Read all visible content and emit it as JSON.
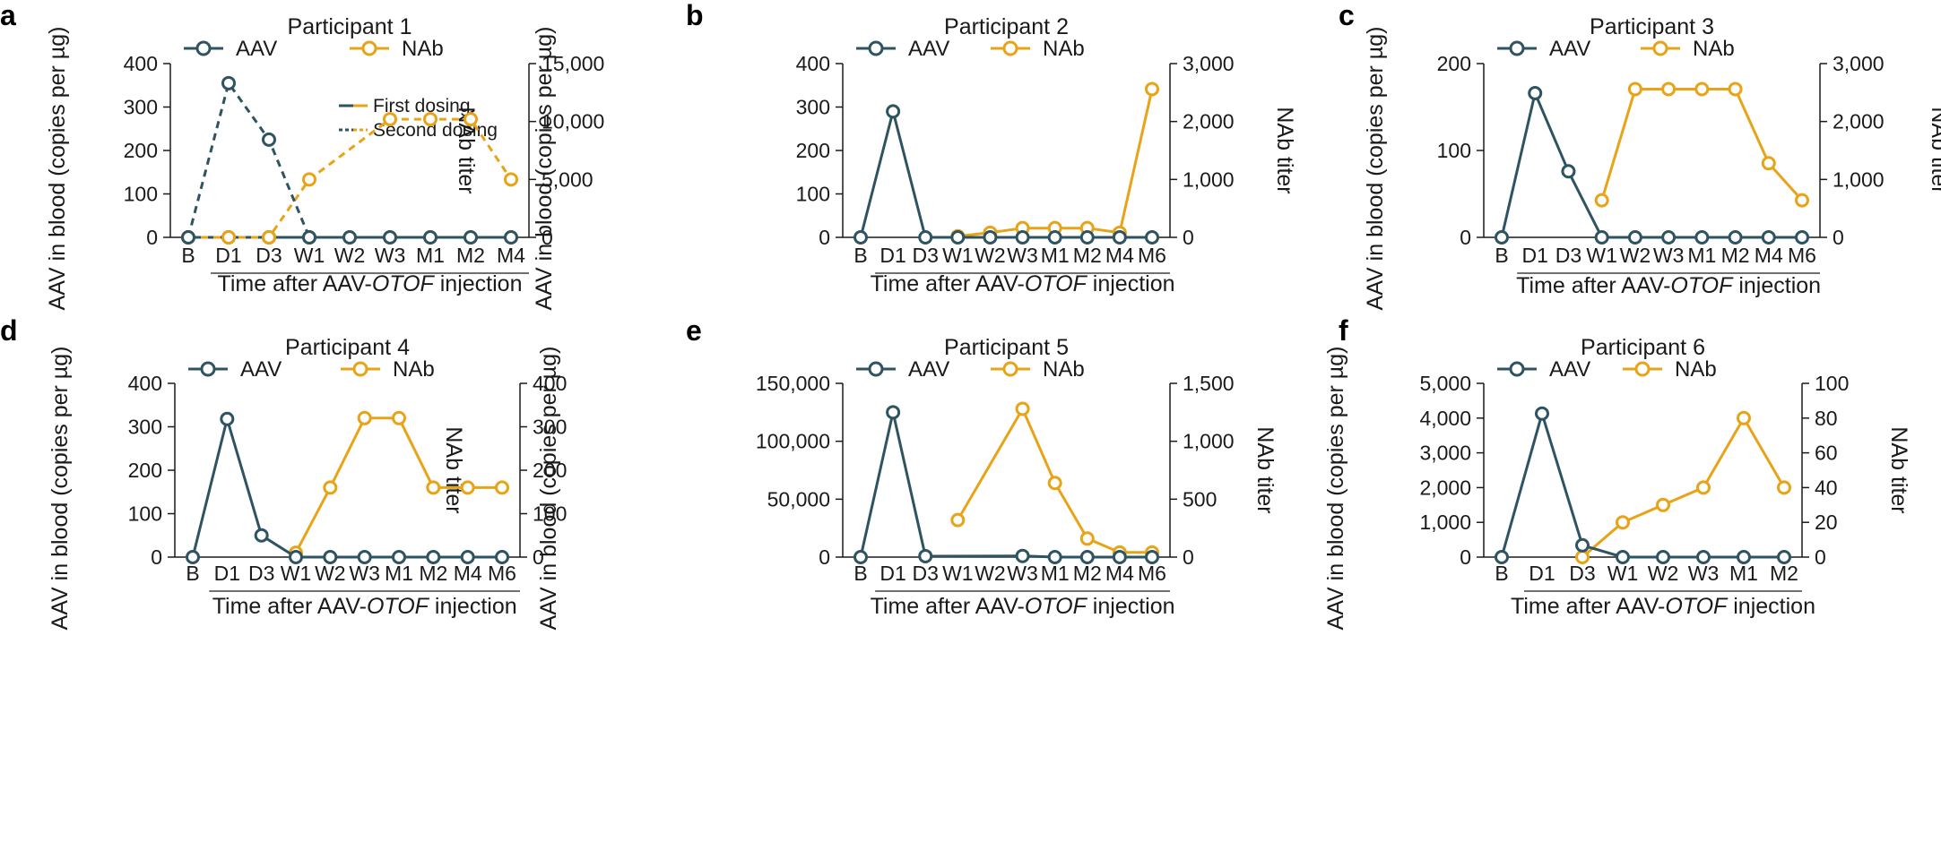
{
  "colors": {
    "aav": "#2e5361",
    "nab": "#e8a317",
    "axis": "#1a1a1a"
  },
  "legend": {
    "aav": "AAV",
    "nab": "NAb",
    "first_dosing": "First dosing",
    "second_dosing": "Second dosing"
  },
  "chart_data": [
    {
      "panel": "a",
      "type": "line",
      "title": "Participant 1",
      "categories": [
        "B",
        "D1",
        "D3",
        "W1",
        "W2",
        "W3",
        "M1",
        "M2",
        "M4"
      ],
      "ylabel": "AAV in blood (copies per µg)",
      "y2label": "NAb titer",
      "xlabel_pre": "Time after AAV-",
      "xlabel_it": "OTOF",
      "xlabel_post": " injection",
      "ylim": [
        0,
        400
      ],
      "yticks": [
        0,
        100,
        200,
        300,
        400
      ],
      "ytick_labels": [
        "0",
        "100",
        "200",
        "300",
        "400"
      ],
      "y2lim": [
        0,
        15000
      ],
      "y2ticks": [
        0,
        5000,
        10000,
        15000
      ],
      "y2tick_labels": [
        "0",
        "5,000",
        "10,000",
        "15,000"
      ],
      "series": [
        {
          "name": "AAV",
          "axis": "left",
          "dosing": "second",
          "values": [
            0,
            355,
            225,
            0,
            null,
            null,
            null,
            null,
            null
          ]
        },
        {
          "name": "NAb",
          "axis": "right",
          "dosing": "second",
          "values": [
            0,
            0,
            0,
            5000,
            null,
            10200,
            10200,
            10200,
            5000
          ]
        },
        {
          "name": "AAV",
          "axis": "left",
          "dosing": "first",
          "values": [
            0,
            0,
            0,
            0,
            0,
            0,
            0,
            0,
            0
          ]
        },
        {
          "name": "NAb",
          "axis": "right",
          "dosing": "first",
          "values": [
            0,
            0,
            0,
            0,
            0,
            0,
            0,
            0,
            0
          ]
        }
      ],
      "dosing_legend": true
    },
    {
      "panel": "b",
      "type": "line",
      "title": "Participant 2",
      "categories": [
        "B",
        "D1",
        "D3",
        "W1",
        "W2",
        "W3",
        "M1",
        "M2",
        "M4",
        "M6"
      ],
      "ylabel": "AAV in blood (copies per µg)",
      "y2label": "NAb titer",
      "xlabel_pre": "Time after AAV-",
      "xlabel_it": "OTOF",
      "xlabel_post": " injection",
      "ylim": [
        0,
        400
      ],
      "yticks": [
        0,
        100,
        200,
        300,
        400
      ],
      "ytick_labels": [
        "0",
        "100",
        "200",
        "300",
        "400"
      ],
      "y2lim": [
        0,
        3000
      ],
      "y2ticks": [
        0,
        1000,
        2000,
        3000
      ],
      "y2tick_labels": [
        "0",
        "1,000",
        "2,000",
        "3,000"
      ],
      "series": [
        {
          "name": "AAV",
          "axis": "left",
          "dosing": "first",
          "values": [
            0,
            290,
            0,
            0,
            0,
            0,
            0,
            0,
            0,
            0
          ]
        },
        {
          "name": "NAb",
          "axis": "right",
          "dosing": "first",
          "values": [
            null,
            null,
            null,
            20,
            80,
            160,
            160,
            160,
            80,
            2560
          ]
        }
      ],
      "dosing_legend": false
    },
    {
      "panel": "c",
      "type": "line",
      "title": "Participant 3",
      "categories": [
        "B",
        "D1",
        "D3",
        "W1",
        "W2",
        "W3",
        "M1",
        "M2",
        "M4",
        "M6"
      ],
      "ylabel": "AAV in blood (copies per µg)",
      "y2label": "NAb titer",
      "xlabel_pre": "Time after AAV-",
      "xlabel_it": "OTOF",
      "xlabel_post": " injection",
      "ylim": [
        0,
        200
      ],
      "yticks": [
        0,
        100,
        200
      ],
      "ytick_labels": [
        "0",
        "100",
        "200"
      ],
      "y2lim": [
        0,
        3000
      ],
      "y2ticks": [
        0,
        1000,
        2000,
        3000
      ],
      "y2tick_labels": [
        "0",
        "1,000",
        "2,000",
        "3,000"
      ],
      "series": [
        {
          "name": "AAV",
          "axis": "left",
          "dosing": "first",
          "values": [
            0,
            166,
            76,
            0,
            0,
            0,
            0,
            0,
            0,
            0
          ]
        },
        {
          "name": "NAb",
          "axis": "right",
          "dosing": "first",
          "values": [
            null,
            null,
            null,
            640,
            2560,
            2560,
            2560,
            2560,
            1280,
            640
          ]
        }
      ],
      "dosing_legend": false
    },
    {
      "panel": "d",
      "type": "line",
      "title": "Participant 4",
      "categories": [
        "B",
        "D1",
        "D3",
        "W1",
        "W2",
        "W3",
        "M1",
        "M2",
        "M4",
        "M6"
      ],
      "ylabel": "AAV in blood (copies per µg)",
      "y2label": "NAb titer",
      "xlabel_pre": "Time after AAV-",
      "xlabel_it": "OTOF",
      "xlabel_post": " injection",
      "ylim": [
        0,
        400
      ],
      "yticks": [
        0,
        100,
        200,
        300,
        400
      ],
      "ytick_labels": [
        "0",
        "100",
        "200",
        "300",
        "400"
      ],
      "y2lim": [
        0,
        400
      ],
      "y2ticks": [
        0,
        100,
        200,
        300,
        400
      ],
      "y2tick_labels": [
        "0",
        "100",
        "200",
        "300",
        "400"
      ],
      "series": [
        {
          "name": "AAV",
          "axis": "left",
          "dosing": "first",
          "values": [
            0,
            318,
            50,
            0,
            0,
            0,
            0,
            0,
            0,
            0
          ]
        },
        {
          "name": "NAb",
          "axis": "right",
          "dosing": "first",
          "values": [
            null,
            null,
            null,
            10,
            160,
            320,
            320,
            160,
            160,
            160
          ]
        }
      ],
      "dosing_legend": false
    },
    {
      "panel": "e",
      "type": "line",
      "title": "Participant 5",
      "categories": [
        "B",
        "D1",
        "D3",
        "W1",
        "W2",
        "W3",
        "M1",
        "M2",
        "M4",
        "M6"
      ],
      "ylabel": "AAV in blood (copies per µg)",
      "y2label": "NAb titer",
      "xlabel_pre": "Time after AAV-",
      "xlabel_it": "OTOF",
      "xlabel_post": " injection",
      "ylim": [
        0,
        150000
      ],
      "yticks": [
        0,
        50000,
        100000,
        150000
      ],
      "ytick_labels": [
        "0",
        "50,000",
        "100,000",
        "150,000"
      ],
      "y2lim": [
        0,
        1500
      ],
      "y2ticks": [
        0,
        500,
        1000,
        1500
      ],
      "y2tick_labels": [
        "0",
        "500",
        "1,000",
        "1,500"
      ],
      "series": [
        {
          "name": "AAV",
          "axis": "left",
          "dosing": "first",
          "values": [
            0,
            125000,
            800,
            null,
            null,
            1000,
            0,
            0,
            0,
            0
          ]
        },
        {
          "name": "NAb",
          "axis": "right",
          "dosing": "first",
          "values": [
            null,
            null,
            null,
            320,
            null,
            1280,
            640,
            160,
            40,
            40
          ]
        }
      ],
      "dosing_legend": false
    },
    {
      "panel": "f",
      "type": "line",
      "title": "Participant 6",
      "categories": [
        "B",
        "D1",
        "D3",
        "W1",
        "W2",
        "W3",
        "M1",
        "M2"
      ],
      "ylabel": "AAV in blood (copies per µg)",
      "y2label": "NAb titer",
      "xlabel_pre": "Time after AAV-",
      "xlabel_it": "OTOF",
      "xlabel_post": " injection",
      "ylim": [
        0,
        5000
      ],
      "yticks": [
        0,
        1000,
        2000,
        3000,
        4000,
        5000
      ],
      "ytick_labels": [
        "0",
        "1,000",
        "2,000",
        "3,000",
        "4,000",
        "5,000"
      ],
      "y2lim": [
        0,
        100
      ],
      "y2ticks": [
        0,
        20,
        40,
        60,
        80,
        100
      ],
      "y2tick_labels": [
        "0",
        "20",
        "40",
        "60",
        "80",
        "100"
      ],
      "series": [
        {
          "name": "AAV",
          "axis": "left",
          "dosing": "first",
          "values": [
            0,
            4130,
            340,
            0,
            0,
            0,
            0,
            0
          ]
        },
        {
          "name": "NAb",
          "axis": "right",
          "dosing": "first",
          "values": [
            null,
            null,
            0,
            20,
            30,
            40,
            80,
            40
          ]
        }
      ],
      "dosing_legend": false
    }
  ]
}
